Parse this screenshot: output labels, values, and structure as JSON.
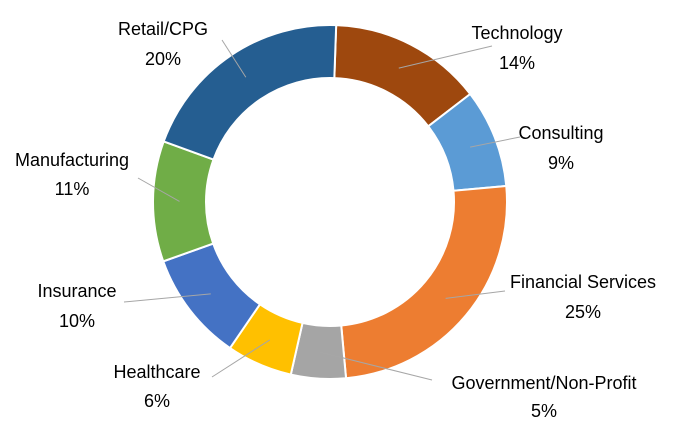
{
  "chart_data": {
    "type": "pie",
    "variant": "donut",
    "title": "",
    "legend": "none",
    "slices": [
      {
        "label": "Technology",
        "value": 14,
        "value_label": "14%",
        "color": "#9E480E"
      },
      {
        "label": "Consulting",
        "value": 9,
        "value_label": "9%",
        "color": "#5B9BD5"
      },
      {
        "label": "Financial Services",
        "value": 25,
        "value_label": "25%",
        "color": "#ED7D31"
      },
      {
        "label": "Government/Non-Profit",
        "value": 5,
        "value_label": "5%",
        "color": "#A5A5A5"
      },
      {
        "label": "Healthcare",
        "value": 6,
        "value_label": "6%",
        "color": "#FFC000"
      },
      {
        "label": "Insurance",
        "value": 10,
        "value_label": "10%",
        "color": "#4472C4"
      },
      {
        "label": "Manufacturing",
        "value": 11,
        "value_label": "11%",
        "color": "#70AD47"
      },
      {
        "label": "Retail/CPG",
        "value": 20,
        "value_label": "20%",
        "color": "#255E91"
      }
    ]
  }
}
